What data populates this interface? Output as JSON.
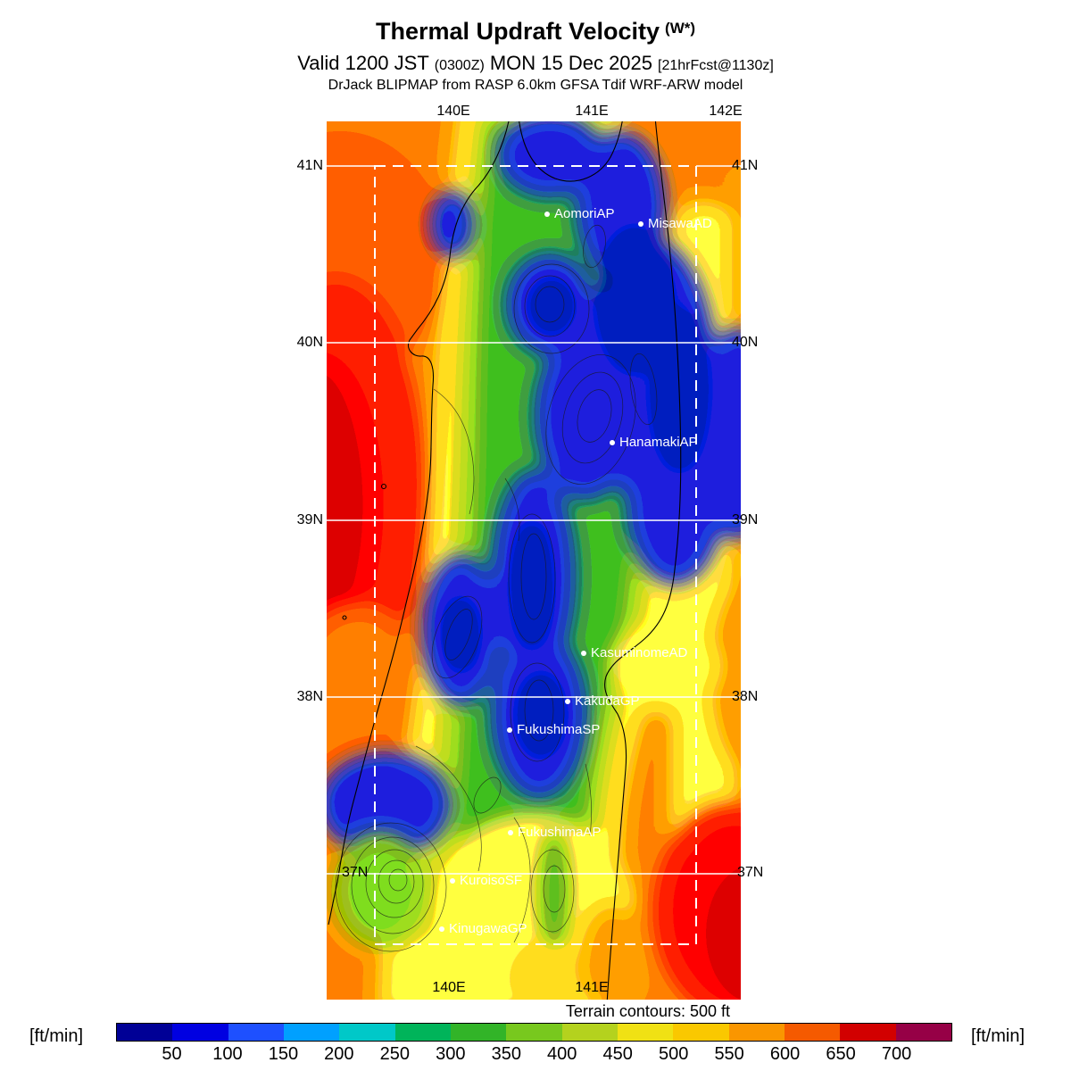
{
  "header": {
    "title": "Thermal Updraft Velocity",
    "title_note": "(W*)",
    "valid_main": "Valid 1200 JST",
    "valid_zulu": "(0300Z)",
    "valid_date": "MON 15 Dec 2025",
    "forecast_tag": "[21hrFcst@1130z]",
    "model_line": "DrJack BLIPMAP from RASP 6.0km GFSA Tdif WRF-ARW model"
  },
  "map": {
    "lon_top": [
      "140E",
      "141E",
      "142E"
    ],
    "lon_bottom": [
      "140E",
      "141E"
    ],
    "lat_left": [
      "41N",
      "40N",
      "39N",
      "38N",
      "37N"
    ],
    "lat_right": [
      "41N",
      "40N",
      "39N",
      "38N",
      "37N"
    ],
    "stations": [
      {
        "name": "AomoriAP"
      },
      {
        "name": "MisawaAD"
      },
      {
        "name": "HanamakiAP"
      },
      {
        "name": "KasuminomeAD"
      },
      {
        "name": "KakudaGP"
      },
      {
        "name": "FukushimaSP"
      },
      {
        "name": "FukushimaAP"
      },
      {
        "name": "KuroisoSF"
      },
      {
        "name": "KinugawaGP"
      }
    ],
    "terrain_note": "Terrain contours: 500 ft"
  },
  "colorbar": {
    "unit_left": "[ft/min]",
    "unit_right": "[ft/min]",
    "ticks": [
      "50",
      "100",
      "150",
      "200",
      "250",
      "300",
      "350",
      "400",
      "450",
      "500",
      "550",
      "600",
      "650",
      "700"
    ],
    "colors": [
      "#000096",
      "#0000e1",
      "#1e50ff",
      "#00a0ff",
      "#00c8c8",
      "#00b45a",
      "#32b428",
      "#78c81e",
      "#b4d21e",
      "#f0e114",
      "#fac800",
      "#fa9600",
      "#f55a00",
      "#d20000",
      "#960046"
    ]
  }
}
